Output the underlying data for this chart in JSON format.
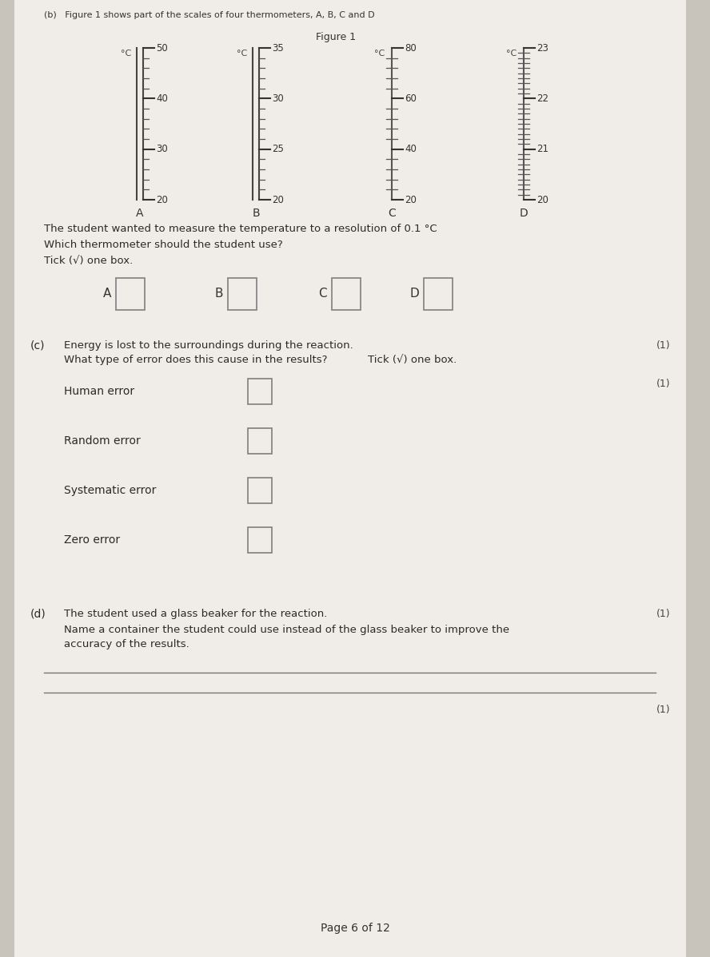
{
  "bg_color": "#c8c4bc",
  "page_bg": "#f0ede8",
  "header_text": "(b)   Figure 1 shows part of the scales of four thermometers, A, B, C and D",
  "figure_title": "Figure 1",
  "thermo_A": {
    "ticks": [
      50,
      40,
      30,
      20
    ],
    "minor_per_seg": 4,
    "label": "A",
    "double_tube": true
  },
  "thermo_B": {
    "ticks": [
      35,
      30,
      25,
      20
    ],
    "minor_per_seg": 4,
    "label": "B",
    "double_tube": true
  },
  "thermo_C": {
    "ticks": [
      80,
      60,
      40,
      20
    ],
    "minor_per_seg": 4,
    "label": "C",
    "double_tube": false
  },
  "thermo_D": {
    "ticks": [
      23,
      22,
      21,
      20
    ],
    "minor_per_seg": 9,
    "label": "D",
    "double_tube": false
  },
  "unit": "°C",
  "question_b1": "The student wanted to measure the temperature to a resolution of 0.1 °C",
  "question_b2": "Which thermometer should the student use?",
  "tick_instruction_b": "Tick (√) one box.",
  "boxes_b": [
    "A",
    "B",
    "C",
    "D"
  ],
  "question_c_label": "(c)",
  "question_c_text1": "Energy is lost to the surroundings during the reaction.",
  "question_c_text2": "What type of error does this cause in the results?",
  "tick_instruction_c": "Tick (√) one box.",
  "mark_c1": "(1)",
  "mark_c2": "(1)",
  "error_options": [
    "Human error",
    "Random error",
    "Systematic error",
    "Zero error"
  ],
  "question_d_label": "(d)",
  "question_d_text1": "The student used a glass beaker for the reaction.",
  "question_d_text2": "Name a container the student could use instead of the glass beaker to improve the",
  "question_d_text3": "accuracy of the results.",
  "mark_d": "(1)",
  "mark_d2": "(1)",
  "page_footer": "Page 6 of 12"
}
